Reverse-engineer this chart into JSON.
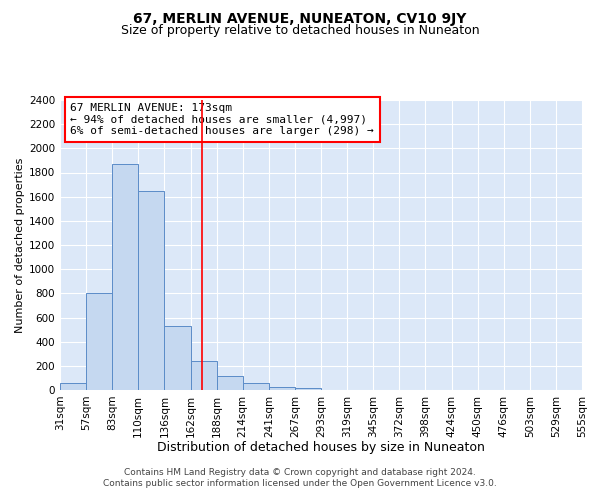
{
  "title": "67, MERLIN AVENUE, NUNEATON, CV10 9JY",
  "subtitle": "Size of property relative to detached houses in Nuneaton",
  "xlabel": "Distribution of detached houses by size in Nuneaton",
  "ylabel": "Number of detached properties",
  "footer_line1": "Contains HM Land Registry data © Crown copyright and database right 2024.",
  "footer_line2": "Contains public sector information licensed under the Open Government Licence v3.0.",
  "annotation_line1": "67 MERLIN AVENUE: 173sqm",
  "annotation_line2": "← 94% of detached houses are smaller (4,997)",
  "annotation_line3": "6% of semi-detached houses are larger (298) →",
  "bin_labels": [
    "31sqm",
    "57sqm",
    "83sqm",
    "110sqm",
    "136sqm",
    "162sqm",
    "188sqm",
    "214sqm",
    "241sqm",
    "267sqm",
    "293sqm",
    "319sqm",
    "345sqm",
    "372sqm",
    "398sqm",
    "424sqm",
    "450sqm",
    "476sqm",
    "503sqm",
    "529sqm",
    "555sqm"
  ],
  "bar_values": [
    55,
    800,
    1870,
    1650,
    530,
    240,
    120,
    55,
    25,
    15,
    0,
    0,
    0,
    0,
    0,
    0,
    0,
    0,
    0,
    0
  ],
  "bar_color": "#c5d8f0",
  "bar_edge_color": "#5b8cc8",
  "vline_color": "red",
  "ylim": [
    0,
    2400
  ],
  "yticks": [
    0,
    200,
    400,
    600,
    800,
    1000,
    1200,
    1400,
    1600,
    1800,
    2000,
    2200,
    2400
  ],
  "background_color": "#dce8f8",
  "grid_color": "#ffffff",
  "title_fontsize": 10,
  "subtitle_fontsize": 9,
  "xlabel_fontsize": 9,
  "ylabel_fontsize": 8,
  "tick_fontsize": 7.5,
  "annotation_fontsize": 8,
  "footer_fontsize": 6.5
}
